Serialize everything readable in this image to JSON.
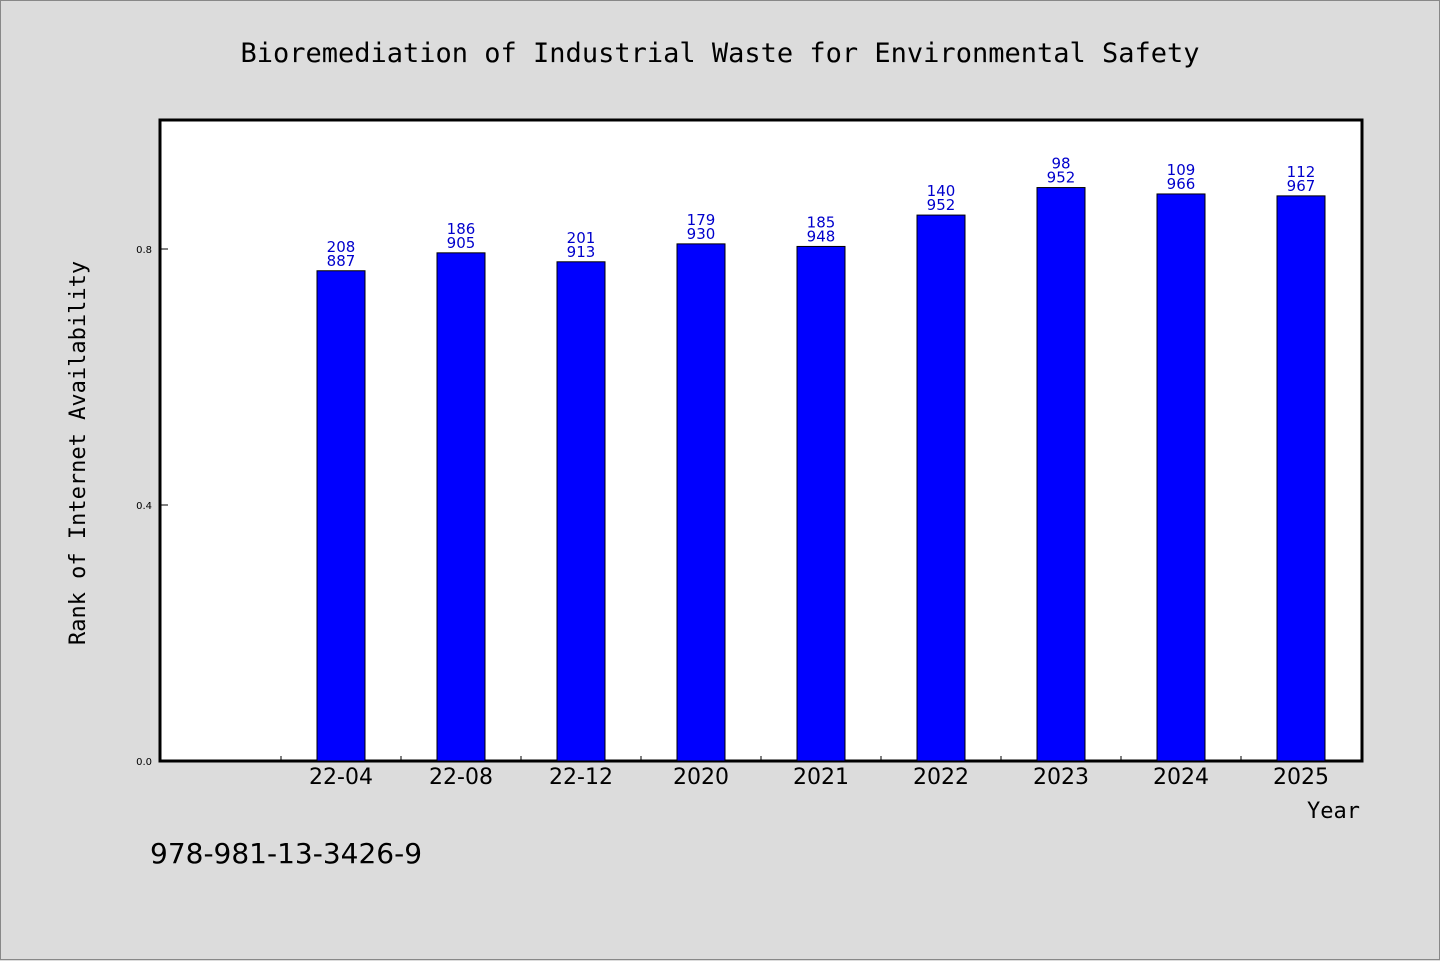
{
  "chart_data": {
    "type": "bar",
    "title": "Bioremediation of Industrial Waste for Environmental Safety",
    "xlabel": "Year",
    "ylabel": "Rank of Internet Availability",
    "categories": [
      "22-04",
      "22-08",
      "22-12",
      "2020",
      "2021",
      "2022",
      "2023",
      "2024",
      "2025"
    ],
    "values": [
      0.766,
      0.794,
      0.78,
      0.808,
      0.804,
      0.853,
      0.896,
      0.886,
      0.883
    ],
    "label_top": [
      "208",
      "186",
      "201",
      "179",
      "185",
      "140",
      "98",
      "109",
      "112"
    ],
    "label_bottom": [
      "887",
      "905",
      "913",
      "930",
      "948",
      "952",
      "952",
      "966",
      "967"
    ],
    "yticks": [
      "0.0",
      "0.4",
      "0.8"
    ],
    "ytick_values": [
      0.0,
      0.4,
      0.8
    ],
    "ylim": [
      0,
      1.0
    ],
    "grid": false,
    "bar_color": "#0000ff",
    "label_color": "#0000cc"
  },
  "footer": {
    "isbn": "978-981-13-3426-9"
  }
}
